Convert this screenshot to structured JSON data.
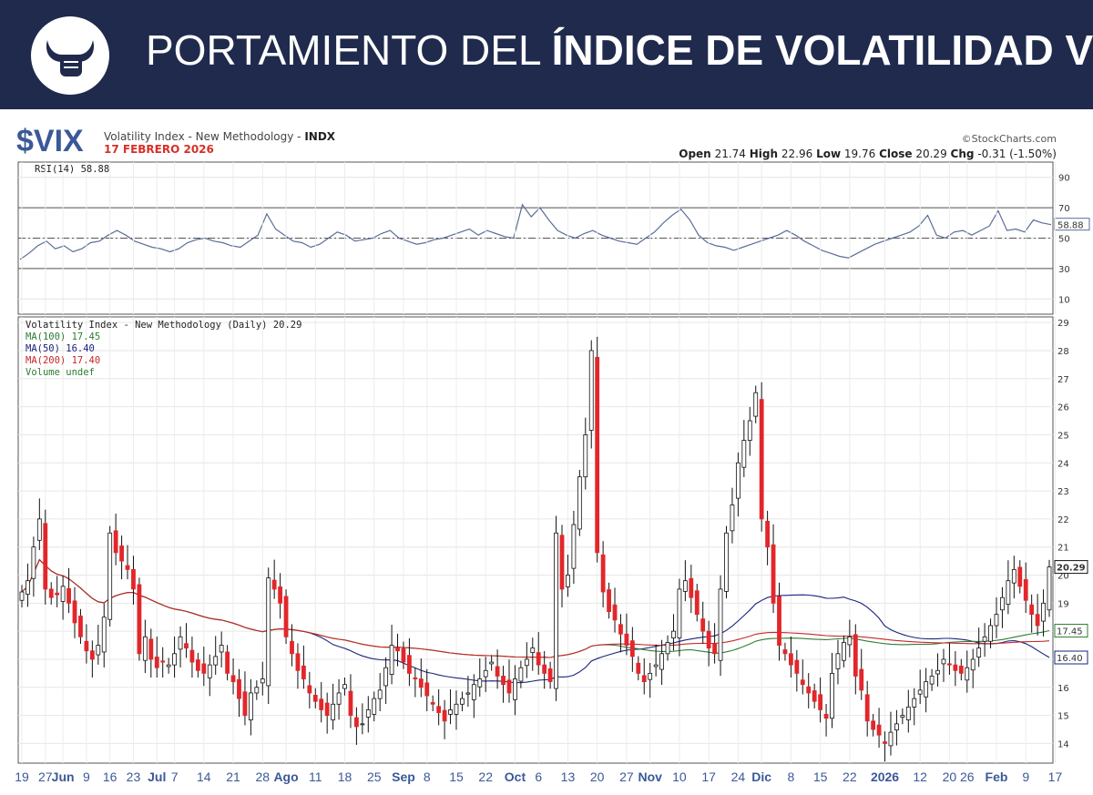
{
  "banner": {
    "title_light": "PORTAMIENTO DEL ",
    "title_bold": "ÍNDICE DE VOLATILIDAD VIX",
    "bg_color": "#1f2a4d"
  },
  "logo": {
    "icon": "bull-horns-fist-icon"
  },
  "header": {
    "symbol": "$VIX",
    "description": "Volatility Index - New Methodology - ",
    "exchange": "INDX",
    "date": "17 FEBRERO 2026",
    "copyright": "©StockCharts.com",
    "quote": {
      "open_label": "Open",
      "open": "21.74",
      "high_label": "High",
      "high": "22.96",
      "low_label": "Low",
      "low": "19.76",
      "close_label": "Close",
      "close": "20.29",
      "chg_label": "Chg",
      "chg": "-0.31 (-1.50%)"
    }
  },
  "chart_data": [
    {
      "type": "line",
      "title": "RSI(14) 58.88",
      "last_value": "58.88",
      "ylim": [
        0,
        100
      ],
      "y_ticks": [
        10,
        30,
        50,
        70,
        90
      ],
      "reference_lines": [
        30,
        50,
        70
      ],
      "series": [
        {
          "name": "RSI(14)",
          "color": "#5a6e96",
          "values": [
            36,
            40,
            45,
            48,
            43,
            45,
            41,
            43,
            47,
            48,
            52,
            55,
            52,
            48,
            46,
            44,
            43,
            41,
            43,
            47,
            49,
            50,
            48,
            47,
            45,
            44,
            48,
            52,
            66,
            56,
            52,
            48,
            47,
            44,
            46,
            50,
            54,
            52,
            48,
            49,
            50,
            53,
            55,
            50,
            48,
            46,
            47,
            49,
            50,
            52,
            54,
            56,
            52,
            55,
            53,
            51,
            50,
            72,
            64,
            70,
            62,
            55,
            52,
            50,
            53,
            55,
            52,
            50,
            48,
            47,
            46,
            50,
            54,
            60,
            65,
            69,
            62,
            52,
            47,
            45,
            44,
            42,
            44,
            46,
            48,
            50,
            52,
            55,
            52,
            48,
            45,
            42,
            40,
            38,
            37,
            40,
            43,
            46,
            48,
            50,
            52,
            54,
            58,
            65,
            52,
            50,
            54,
            55,
            52,
            55,
            58,
            68,
            55,
            56,
            54,
            62,
            60,
            58.88
          ]
        }
      ]
    },
    {
      "type": "candlestick",
      "title": "Volatility Index - New Methodology (Daily) 20.29",
      "ylim": [
        13.3,
        29.2
      ],
      "y_ticks": [
        14,
        15,
        16,
        17,
        18,
        19,
        20,
        21,
        22,
        23,
        24,
        25,
        26,
        27,
        28,
        29
      ],
      "last_value_label": "20.29",
      "ma_labels": [
        "17.45",
        "16.40"
      ],
      "x_tick_labels": [
        {
          "label": "19",
          "bold": false,
          "i": 0
        },
        {
          "label": "27",
          "bold": false,
          "i": 4
        },
        {
          "label": "Jun",
          "bold": true,
          "i": 7
        },
        {
          "label": "9",
          "bold": false,
          "i": 11
        },
        {
          "label": "16",
          "bold": false,
          "i": 15
        },
        {
          "label": "23",
          "bold": false,
          "i": 19
        },
        {
          "label": "Jul",
          "bold": true,
          "i": 23
        },
        {
          "label": "7",
          "bold": false,
          "i": 26
        },
        {
          "label": "14",
          "bold": false,
          "i": 31
        },
        {
          "label": "21",
          "bold": false,
          "i": 36
        },
        {
          "label": "28",
          "bold": false,
          "i": 41
        },
        {
          "label": "Ago",
          "bold": true,
          "i": 45
        },
        {
          "label": "11",
          "bold": false,
          "i": 50
        },
        {
          "label": "18",
          "bold": false,
          "i": 55
        },
        {
          "label": "25",
          "bold": false,
          "i": 60
        },
        {
          "label": "Sep",
          "bold": true,
          "i": 65
        },
        {
          "label": "8",
          "bold": false,
          "i": 69
        },
        {
          "label": "15",
          "bold": false,
          "i": 74
        },
        {
          "label": "22",
          "bold": false,
          "i": 79
        },
        {
          "label": "Oct",
          "bold": true,
          "i": 84
        },
        {
          "label": "6",
          "bold": false,
          "i": 88
        },
        {
          "label": "13",
          "bold": false,
          "i": 93
        },
        {
          "label": "20",
          "bold": false,
          "i": 98
        },
        {
          "label": "27",
          "bold": false,
          "i": 103
        },
        {
          "label": "Nov",
          "bold": true,
          "i": 107
        },
        {
          "label": "10",
          "bold": false,
          "i": 112
        },
        {
          "label": "17",
          "bold": false,
          "i": 117
        },
        {
          "label": "24",
          "bold": false,
          "i": 122
        },
        {
          "label": "Dic",
          "bold": true,
          "i": 126
        },
        {
          "label": "8",
          "bold": false,
          "i": 131
        },
        {
          "label": "15",
          "bold": false,
          "i": 136
        },
        {
          "label": "22",
          "bold": false,
          "i": 141
        },
        {
          "label": "2026",
          "bold": true,
          "i": 147
        },
        {
          "label": "12",
          "bold": false,
          "i": 153
        },
        {
          "label": "20",
          "bold": false,
          "i": 158
        },
        {
          "label": "26",
          "bold": false,
          "i": 161
        },
        {
          "label": "Feb",
          "bold": true,
          "i": 166
        },
        {
          "label": "9",
          "bold": false,
          "i": 171
        },
        {
          "label": "17",
          "bold": false,
          "i": 176
        }
      ],
      "legend": [
        {
          "label": "Volatility Index - New Methodology (Daily) 20.29",
          "color": "#222222"
        },
        {
          "label": "MA(100) 17.45",
          "color": "#2e7d32"
        },
        {
          "label": "MA(50) 16.40",
          "color": "#1a237e"
        },
        {
          "label": "MA(200) 17.40",
          "color": "#c62828"
        },
        {
          "label": "Volume undef",
          "color": "#2e7d32"
        }
      ],
      "close": [
        19.4,
        19.8,
        21.0,
        22.0,
        19.5,
        19.2,
        19.3,
        19.6,
        19.0,
        18.3,
        17.8,
        17.3,
        17.0,
        17.5,
        18.5,
        21.5,
        20.8,
        20.5,
        20.2,
        19.5,
        17.2,
        17.8,
        17.0,
        16.7,
        16.9,
        16.8,
        17.2,
        17.8,
        17.4,
        16.9,
        16.6,
        16.5,
        16.8,
        17.1,
        17.5,
        16.5,
        16.2,
        15.6,
        15.0,
        15.8,
        16.0,
        16.3,
        19.9,
        19.5,
        19.0,
        17.8,
        17.2,
        16.6,
        16.3,
        15.8,
        15.5,
        15.2,
        15.0,
        15.4,
        15.8,
        16.1,
        15.0,
        14.6,
        14.7,
        15.2,
        15.6,
        15.9,
        16.7,
        17.5,
        17.3,
        16.9,
        16.5,
        16.3,
        16.0,
        15.7,
        15.4,
        15.1,
        14.8,
        15.2,
        15.4,
        15.6,
        15.8,
        16.1,
        16.3,
        16.6,
        16.9,
        16.4,
        16.1,
        15.8,
        16.3,
        16.7,
        17.0,
        17.4,
        16.8,
        16.5,
        16.2,
        21.5,
        19.5,
        20.0,
        21.8,
        23.5,
        25.0,
        28.0,
        20.8,
        19.4,
        18.7,
        18.4,
        17.9,
        17.5,
        17.1,
        16.5,
        16.2,
        16.5,
        16.8,
        17.2,
        17.6,
        18.0,
        19.5,
        19.8,
        19.2,
        18.6,
        18.0,
        17.4,
        17.2,
        19.5,
        21.5,
        22.5,
        24.0,
        24.8,
        25.5,
        26.5,
        22.0,
        21.0,
        19.0,
        17.5,
        17.2,
        16.8,
        16.5,
        16.1,
        15.8,
        15.5,
        15.2,
        14.9,
        16.5,
        17.2,
        17.6,
        17.8,
        16.4,
        15.9,
        14.8,
        14.5,
        14.3,
        14.0,
        14.4,
        14.7,
        15.0,
        15.3,
        15.6,
        15.9,
        16.2,
        16.4,
        16.6,
        17.0,
        16.8,
        16.6,
        16.5,
        16.7,
        17.0,
        17.4,
        17.8,
        18.2,
        18.6,
        19.2,
        19.8,
        20.2,
        19.6,
        19.1,
        18.6,
        18.2,
        19.0,
        20.29
      ]
    }
  ]
}
